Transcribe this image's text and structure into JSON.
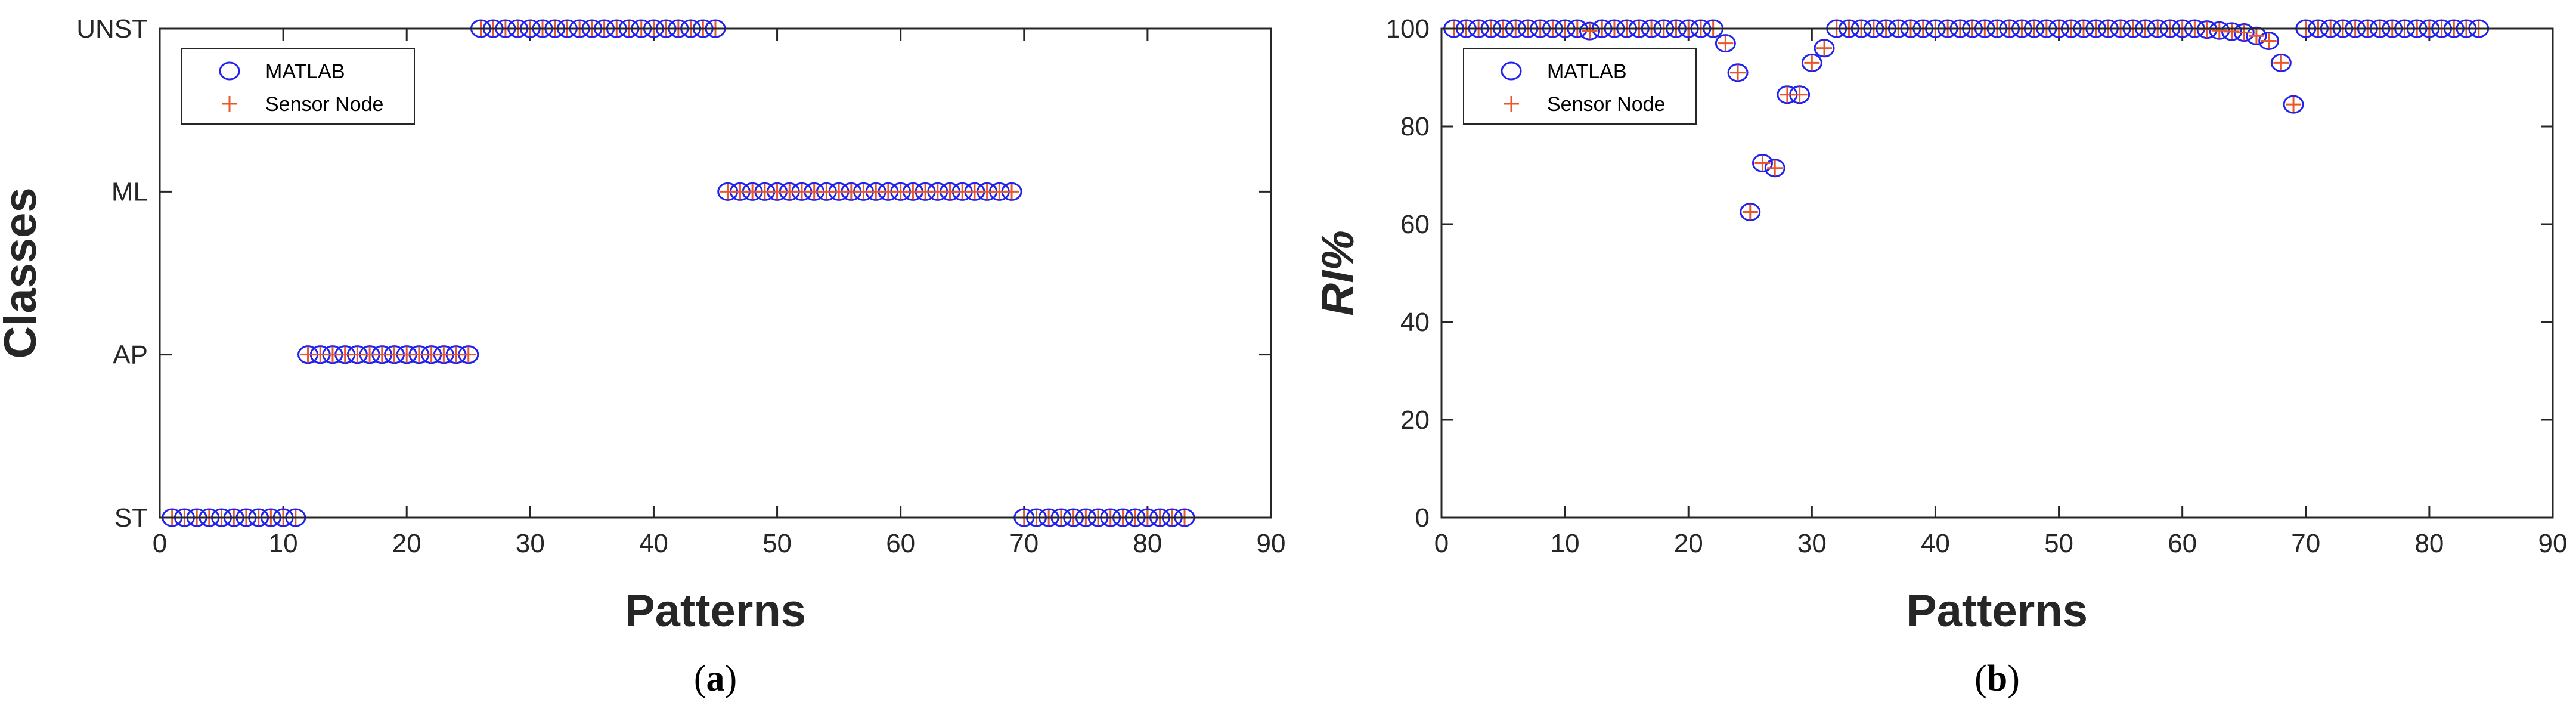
{
  "colors": {
    "matlab_marker": "#2222ee",
    "sensor_marker": "#e8572a",
    "axes": "#262626"
  },
  "chart_data": [
    {
      "panel": "a",
      "caption_open": "(",
      "caption_letter": "a",
      "caption_close": ")",
      "type": "scatter",
      "title": "",
      "xlabel": "Patterns",
      "ylabel": "Classes",
      "xlim": [
        0,
        90
      ],
      "ylim": [
        0,
        3
      ],
      "x_ticks": [
        0,
        10,
        20,
        30,
        40,
        50,
        60,
        70,
        80,
        90
      ],
      "y_ticks": [
        0,
        1,
        2,
        3
      ],
      "y_tick_labels": [
        "ST",
        "AP",
        "ML",
        "UNST"
      ],
      "grid": false,
      "legend": {
        "position": "top-left",
        "entries": [
          "MATLAB",
          "Sensor Node"
        ]
      },
      "series": [
        {
          "name": "MATLAB",
          "marker": "circle",
          "x": [
            1,
            2,
            3,
            4,
            5,
            6,
            7,
            8,
            9,
            10,
            11,
            12,
            13,
            14,
            15,
            16,
            17,
            18,
            19,
            20,
            21,
            22,
            23,
            24,
            25,
            26,
            27,
            28,
            29,
            30,
            31,
            32,
            33,
            34,
            35,
            36,
            37,
            38,
            39,
            40,
            41,
            42,
            43,
            44,
            45,
            46,
            47,
            48,
            49,
            50,
            51,
            52,
            53,
            54,
            55,
            56,
            57,
            58,
            59,
            60,
            61,
            62,
            63,
            64,
            65,
            66,
            67,
            68,
            69,
            70,
            71,
            72,
            73,
            74,
            75,
            76,
            77,
            78,
            79,
            80,
            81,
            82,
            83
          ],
          "y": [
            0,
            0,
            0,
            0,
            0,
            0,
            0,
            0,
            0,
            0,
            0,
            1,
            1,
            1,
            1,
            1,
            1,
            1,
            1,
            1,
            1,
            1,
            1,
            1,
            1,
            3,
            3,
            3,
            3,
            3,
            3,
            3,
            3,
            3,
            3,
            3,
            3,
            3,
            3,
            3,
            3,
            3,
            3,
            3,
            3,
            2,
            2,
            2,
            2,
            2,
            2,
            2,
            2,
            2,
            2,
            2,
            2,
            2,
            2,
            2,
            2,
            2,
            2,
            2,
            2,
            2,
            2,
            2,
            2,
            0,
            0,
            0,
            0,
            0,
            0,
            0,
            0,
            0,
            0,
            0,
            0,
            0,
            0
          ]
        },
        {
          "name": "Sensor Node",
          "marker": "plus",
          "x": [
            1,
            2,
            3,
            4,
            5,
            6,
            7,
            8,
            9,
            10,
            11,
            12,
            13,
            14,
            15,
            16,
            17,
            18,
            19,
            20,
            21,
            22,
            23,
            24,
            25,
            26,
            27,
            28,
            29,
            30,
            31,
            32,
            33,
            34,
            35,
            36,
            37,
            38,
            39,
            40,
            41,
            42,
            43,
            44,
            45,
            46,
            47,
            48,
            49,
            50,
            51,
            52,
            53,
            54,
            55,
            56,
            57,
            58,
            59,
            60,
            61,
            62,
            63,
            64,
            65,
            66,
            67,
            68,
            69,
            70,
            71,
            72,
            73,
            74,
            75,
            76,
            77,
            78,
            79,
            80,
            81,
            82,
            83
          ],
          "y": [
            0,
            0,
            0,
            0,
            0,
            0,
            0,
            0,
            0,
            0,
            0,
            1,
            1,
            1,
            1,
            1,
            1,
            1,
            1,
            1,
            1,
            1,
            1,
            1,
            1,
            3,
            3,
            3,
            3,
            3,
            3,
            3,
            3,
            3,
            3,
            3,
            3,
            3,
            3,
            3,
            3,
            3,
            3,
            3,
            3,
            2,
            2,
            2,
            2,
            2,
            2,
            2,
            2,
            2,
            2,
            2,
            2,
            2,
            2,
            2,
            2,
            2,
            2,
            2,
            2,
            2,
            2,
            2,
            2,
            0,
            0,
            0,
            0,
            0,
            0,
            0,
            0,
            0,
            0,
            0,
            0,
            0,
            0
          ]
        }
      ]
    },
    {
      "panel": "b",
      "caption_open": "(",
      "caption_letter": "b",
      "caption_close": ")",
      "type": "scatter",
      "title": "",
      "xlabel": "Patterns",
      "ylabel": "RI%",
      "xlim": [
        0,
        90
      ],
      "ylim": [
        0,
        100
      ],
      "x_ticks": [
        0,
        10,
        20,
        30,
        40,
        50,
        60,
        70,
        80,
        90
      ],
      "y_ticks": [
        0,
        20,
        40,
        60,
        80,
        100
      ],
      "grid": false,
      "legend": {
        "position": "top-left",
        "entries": [
          "MATLAB",
          "Sensor Node"
        ]
      },
      "series": [
        {
          "name": "MATLAB",
          "marker": "circle",
          "x": [
            1,
            2,
            3,
            4,
            5,
            6,
            7,
            8,
            9,
            10,
            11,
            12,
            13,
            14,
            15,
            16,
            17,
            18,
            19,
            20,
            21,
            22,
            23,
            24,
            25,
            26,
            27,
            28,
            29,
            30,
            31,
            32,
            33,
            34,
            35,
            36,
            37,
            38,
            39,
            40,
            41,
            42,
            43,
            44,
            45,
            46,
            47,
            48,
            49,
            50,
            51,
            52,
            53,
            54,
            55,
            56,
            57,
            58,
            59,
            60,
            61,
            62,
            63,
            64,
            65,
            66,
            67,
            68,
            69,
            70,
            71,
            72,
            73,
            74,
            75,
            76,
            77,
            78,
            79,
            80,
            81,
            82,
            83,
            84
          ],
          "y": [
            100,
            100,
            100,
            100,
            100,
            100,
            100,
            100,
            100,
            100,
            100,
            99.5,
            100,
            100,
            100,
            100,
            100,
            100,
            100,
            100,
            100,
            100,
            97,
            91,
            62.5,
            72.5,
            71.5,
            86.5,
            86.5,
            93,
            96,
            100,
            100,
            100,
            100,
            100,
            100,
            100,
            100,
            100,
            100,
            100,
            100,
            100,
            100,
            100,
            100,
            100,
            100,
            100,
            100,
            100,
            100,
            100,
            100,
            100,
            100,
            100,
            100,
            100,
            100,
            99.8,
            99.6,
            99.4,
            99.2,
            98.5,
            97.5,
            93,
            84.5,
            100,
            100,
            100,
            100,
            100,
            100,
            100,
            100,
            100,
            100,
            100,
            100,
            100,
            100,
            100
          ]
        },
        {
          "name": "Sensor Node",
          "marker": "plus",
          "x": [
            1,
            2,
            3,
            4,
            5,
            6,
            7,
            8,
            9,
            10,
            11,
            12,
            13,
            14,
            15,
            16,
            17,
            18,
            19,
            20,
            21,
            22,
            23,
            24,
            25,
            26,
            27,
            28,
            29,
            30,
            31,
            32,
            33,
            34,
            35,
            36,
            37,
            38,
            39,
            40,
            41,
            42,
            43,
            44,
            45,
            46,
            47,
            48,
            49,
            50,
            51,
            52,
            53,
            54,
            55,
            56,
            57,
            58,
            59,
            60,
            61,
            62,
            63,
            64,
            65,
            66,
            67,
            68,
            69,
            70,
            71,
            72,
            73,
            74,
            75,
            76,
            77,
            78,
            79,
            80,
            81,
            82,
            83,
            84
          ],
          "y": [
            100,
            100,
            100,
            100,
            100,
            100,
            100,
            100,
            100,
            100,
            100,
            99.5,
            100,
            100,
            100,
            100,
            100,
            100,
            100,
            100,
            100,
            100,
            97,
            91,
            62.5,
            72.5,
            71.5,
            86.5,
            86.5,
            93,
            96,
            100,
            100,
            100,
            100,
            100,
            100,
            100,
            100,
            100,
            100,
            100,
            100,
            100,
            100,
            100,
            100,
            100,
            100,
            100,
            100,
            100,
            100,
            100,
            100,
            100,
            100,
            100,
            100,
            100,
            100,
            99.8,
            99.6,
            99.4,
            99.2,
            98.5,
            97.5,
            93,
            84.5,
            100,
            100,
            100,
            100,
            100,
            100,
            100,
            100,
            100,
            100,
            100,
            100,
            100,
            100,
            100
          ]
        }
      ]
    }
  ]
}
